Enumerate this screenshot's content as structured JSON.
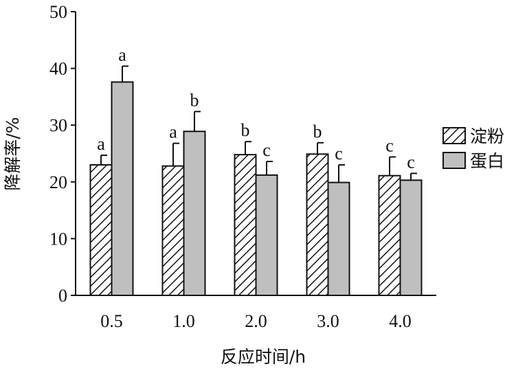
{
  "chart_data": {
    "type": "bar",
    "xlabel": "反应时间/h",
    "ylabel": "降解率/%",
    "categories": [
      "0.5",
      "1.0",
      "2.0",
      "3.0",
      "4.0"
    ],
    "ylim": [
      0,
      50
    ],
    "yticks": [
      0,
      10,
      20,
      30,
      40,
      50
    ],
    "grid": false,
    "legend_position": "right",
    "series": [
      {
        "name": "淀粉",
        "fill": "hatched",
        "color": "#ffffff",
        "values": [
          23.0,
          22.8,
          24.8,
          24.9,
          21.1
        ],
        "errors": [
          1.7,
          4.0,
          2.3,
          2.0,
          3.3
        ],
        "significance": [
          "a",
          "a",
          "b",
          "b",
          "c"
        ]
      },
      {
        "name": "蛋白",
        "fill": "solid",
        "color": "#bfbfbf",
        "values": [
          37.6,
          28.9,
          21.2,
          19.9,
          20.3
        ],
        "errors": [
          2.8,
          3.5,
          2.4,
          3.1,
          1.2
        ],
        "significance": [
          "a",
          "b",
          "c",
          "c",
          "c"
        ]
      }
    ]
  }
}
